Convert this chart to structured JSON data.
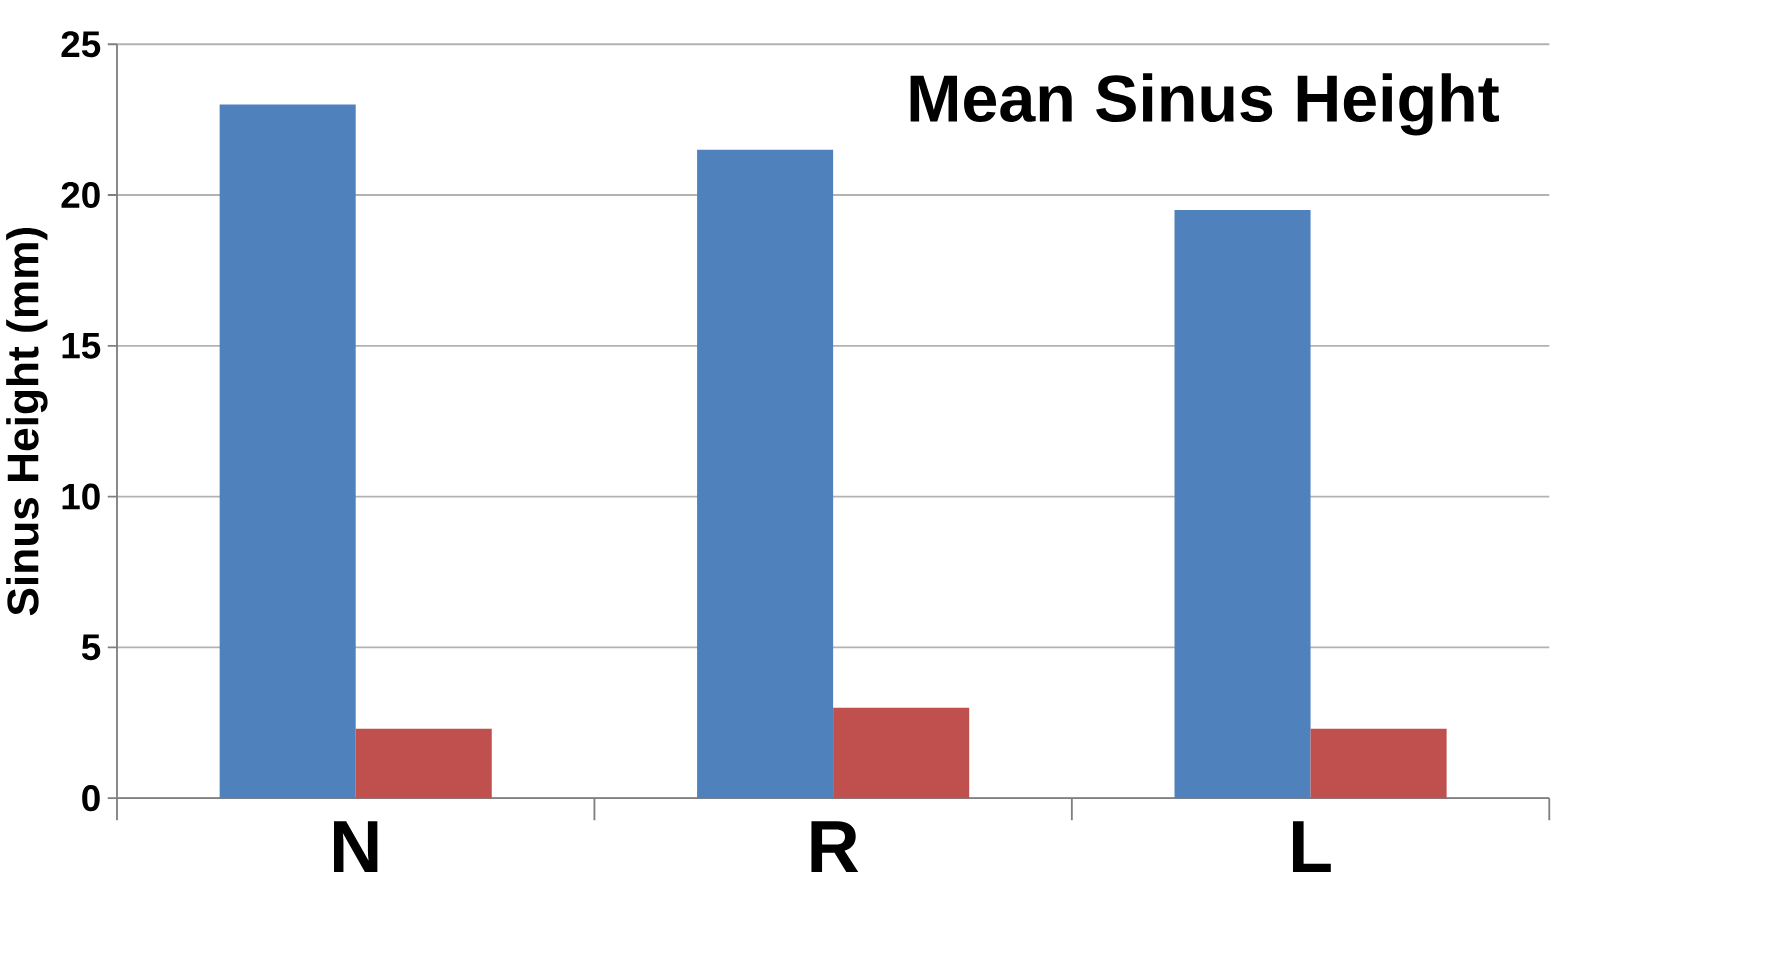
{
  "chart_data": {
    "type": "bar",
    "title": "Mean Sinus Height",
    "ylabel": "Sinus Height (mm)",
    "categories": [
      "N",
      "R",
      "L"
    ],
    "series": [
      {
        "color": "#4f81bd",
        "values": [
          23,
          21.5,
          19.5
        ]
      },
      {
        "color": "#c0504d",
        "values": [
          2.3,
          3.0,
          2.3
        ]
      }
    ],
    "ylim": [
      0,
      25
    ],
    "yticks": [
      0,
      5,
      10,
      15,
      20,
      25
    ],
    "grid": "y"
  }
}
